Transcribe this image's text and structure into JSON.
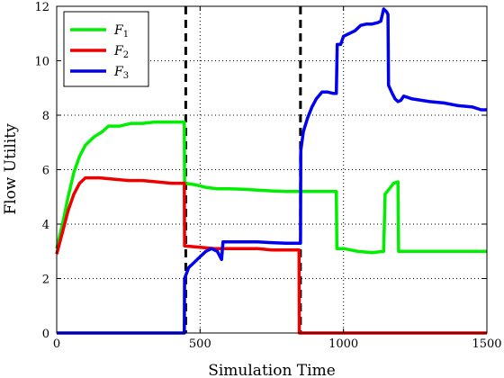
{
  "chart_data": {
    "type": "line",
    "xlabel": "Simulation Time",
    "ylabel": "Flow Utility",
    "xlim": [
      0,
      1500
    ],
    "ylim": [
      0,
      12
    ],
    "x_ticks": [
      0,
      500,
      1000,
      1500
    ],
    "y_ticks": [
      0,
      2,
      4,
      6,
      8,
      10,
      12
    ],
    "grid": true,
    "legend_position": "top-left",
    "vertical_markers": [
      450,
      850
    ],
    "series": [
      {
        "name": "F1",
        "color": "#00ee00",
        "points": [
          [
            0,
            3.1
          ],
          [
            20,
            4.0
          ],
          [
            40,
            5.0
          ],
          [
            60,
            5.9
          ],
          [
            80,
            6.5
          ],
          [
            100,
            6.9
          ],
          [
            130,
            7.2
          ],
          [
            160,
            7.4
          ],
          [
            180,
            7.6
          ],
          [
            220,
            7.6
          ],
          [
            260,
            7.7
          ],
          [
            300,
            7.7
          ],
          [
            340,
            7.75
          ],
          [
            380,
            7.75
          ],
          [
            420,
            7.75
          ],
          [
            445,
            7.75
          ],
          [
            446,
            5.5
          ],
          [
            480,
            5.45
          ],
          [
            520,
            5.35
          ],
          [
            560,
            5.3
          ],
          [
            600,
            5.3
          ],
          [
            650,
            5.28
          ],
          [
            700,
            5.25
          ],
          [
            750,
            5.22
          ],
          [
            800,
            5.2
          ],
          [
            850,
            5.2
          ],
          [
            900,
            5.2
          ],
          [
            960,
            5.2
          ],
          [
            975,
            5.2
          ],
          [
            977,
            3.1
          ],
          [
            1000,
            3.1
          ],
          [
            1050,
            3.0
          ],
          [
            1100,
            2.95
          ],
          [
            1140,
            3.0
          ],
          [
            1145,
            5.1
          ],
          [
            1160,
            5.3
          ],
          [
            1175,
            5.5
          ],
          [
            1190,
            5.55
          ],
          [
            1192,
            3.0
          ],
          [
            1300,
            3.0
          ],
          [
            1400,
            3.0
          ],
          [
            1500,
            3.0
          ]
        ]
      },
      {
        "name": "F2",
        "color": "#ee0000",
        "points": [
          [
            0,
            2.9
          ],
          [
            20,
            3.7
          ],
          [
            40,
            4.5
          ],
          [
            60,
            5.1
          ],
          [
            80,
            5.5
          ],
          [
            100,
            5.7
          ],
          [
            150,
            5.7
          ],
          [
            200,
            5.65
          ],
          [
            250,
            5.6
          ],
          [
            300,
            5.6
          ],
          [
            350,
            5.55
          ],
          [
            400,
            5.5
          ],
          [
            445,
            5.5
          ],
          [
            446,
            3.2
          ],
          [
            500,
            3.15
          ],
          [
            550,
            3.1
          ],
          [
            600,
            3.1
          ],
          [
            650,
            3.1
          ],
          [
            700,
            3.1
          ],
          [
            750,
            3.05
          ],
          [
            800,
            3.05
          ],
          [
            845,
            3.05
          ],
          [
            846,
            0.0
          ],
          [
            1000,
            0.0
          ],
          [
            1200,
            0.0
          ],
          [
            1500,
            0.0
          ]
        ]
      },
      {
        "name": "F3",
        "color": "#0000ee",
        "points": [
          [
            0,
            0.0
          ],
          [
            200,
            0.0
          ],
          [
            445,
            0.0
          ],
          [
            446,
            2.0
          ],
          [
            460,
            2.4
          ],
          [
            480,
            2.6
          ],
          [
            500,
            2.8
          ],
          [
            520,
            3.0
          ],
          [
            540,
            3.1
          ],
          [
            560,
            3.0
          ],
          [
            575,
            2.7
          ],
          [
            580,
            3.35
          ],
          [
            650,
            3.35
          ],
          [
            700,
            3.35
          ],
          [
            750,
            3.32
          ],
          [
            800,
            3.3
          ],
          [
            850,
            3.3
          ],
          [
            851,
            6.7
          ],
          [
            860,
            7.4
          ],
          [
            875,
            7.9
          ],
          [
            890,
            8.3
          ],
          [
            905,
            8.6
          ],
          [
            925,
            8.85
          ],
          [
            945,
            8.85
          ],
          [
            965,
            8.8
          ],
          [
            975,
            8.8
          ],
          [
            978,
            10.6
          ],
          [
            990,
            10.6
          ],
          [
            1000,
            10.9
          ],
          [
            1020,
            11.0
          ],
          [
            1040,
            11.1
          ],
          [
            1060,
            11.3
          ],
          [
            1080,
            11.35
          ],
          [
            1100,
            11.35
          ],
          [
            1120,
            11.4
          ],
          [
            1130,
            11.45
          ],
          [
            1140,
            11.9
          ],
          [
            1150,
            11.8
          ],
          [
            1155,
            11.7
          ],
          [
            1157,
            9.1
          ],
          [
            1170,
            8.8
          ],
          [
            1180,
            8.6
          ],
          [
            1190,
            8.5
          ],
          [
            1200,
            8.55
          ],
          [
            1210,
            8.7
          ],
          [
            1240,
            8.6
          ],
          [
            1300,
            8.5
          ],
          [
            1350,
            8.45
          ],
          [
            1400,
            8.35
          ],
          [
            1450,
            8.3
          ],
          [
            1480,
            8.2
          ],
          [
            1500,
            8.2
          ]
        ]
      }
    ]
  }
}
